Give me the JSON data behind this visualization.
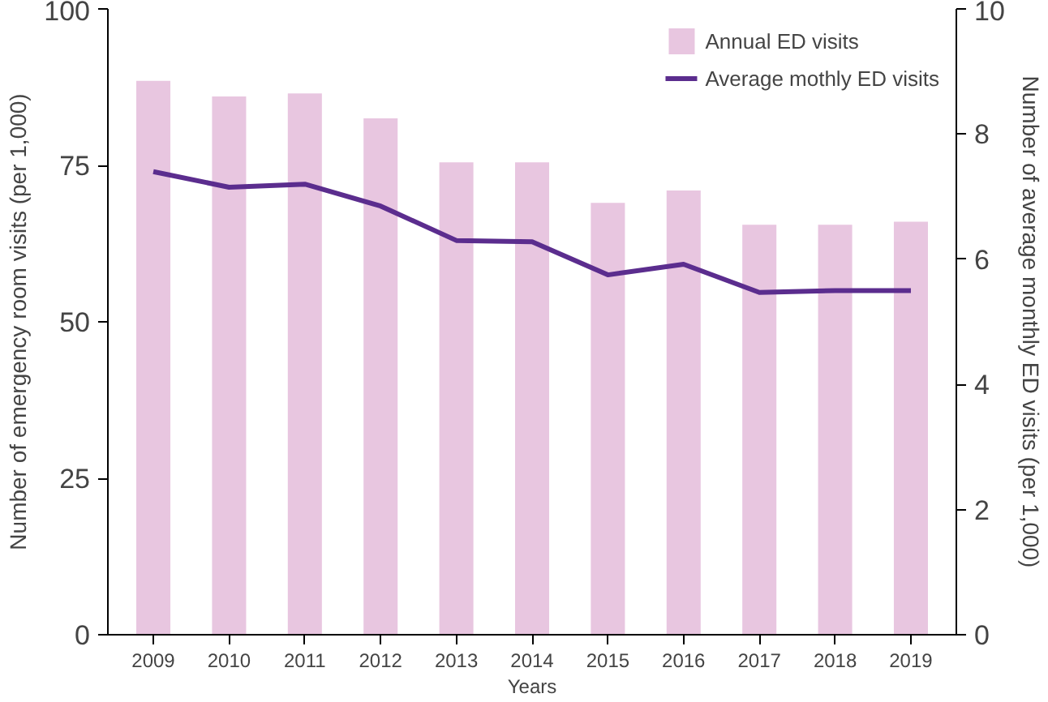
{
  "chart_data": {
    "type": "bar",
    "xlabel": "Years",
    "ylabel": "Number of emergency room visits (per 1,000)",
    "y2label": "Number of average monthly ED visits (per 1,000)",
    "categories": [
      "2009",
      "2010",
      "2011",
      "2012",
      "2013",
      "2014",
      "2015",
      "2016",
      "2017",
      "2018",
      "2019"
    ],
    "series": [
      {
        "name": "Annual ED visits",
        "color": "#e8c6e0",
        "values": [
          88.5,
          86,
          86.5,
          82.5,
          75.5,
          75.5,
          69,
          71,
          65.5,
          65.5,
          66
        ]
      },
      {
        "name": "Average mothly ED visits",
        "type": "line",
        "axis": "y2",
        "color": "#5b2d8e",
        "values": [
          7.4,
          7.15,
          7.2,
          6.85,
          6.3,
          6.28,
          5.75,
          5.92,
          5.47,
          5.5,
          5.5
        ]
      }
    ],
    "ylim": [
      0,
      100
    ],
    "yticks": [
      0,
      25,
      50,
      75,
      100
    ],
    "y2lim": [
      0,
      10
    ],
    "y2ticks": [
      0,
      2,
      4,
      6,
      8,
      10
    ],
    "grid": false,
    "legend": "top right",
    "marker": "none",
    "line_style": "solid"
  }
}
